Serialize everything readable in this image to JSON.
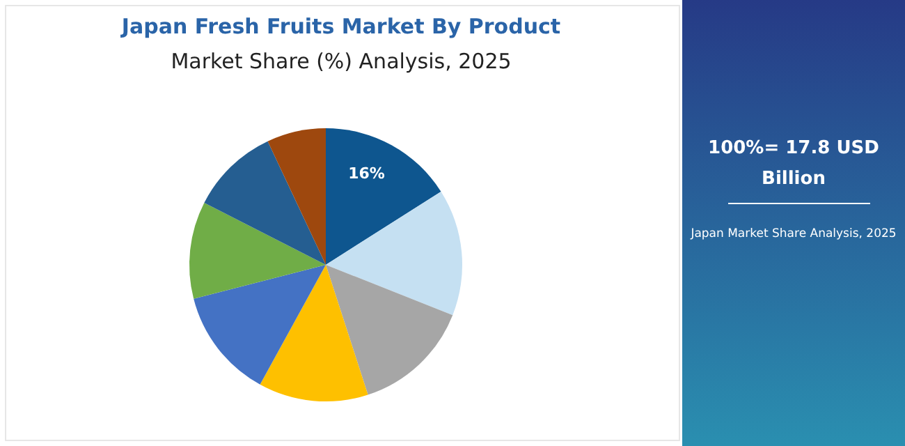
{
  "chart_data": {
    "type": "pie",
    "title": "Japan Fresh Fruits Market By Product",
    "subtitle": "Market Share (%) Analysis, 2025",
    "categories": [
      null,
      null,
      null,
      null,
      null,
      null,
      null,
      null
    ],
    "values": [
      16,
      15,
      14,
      13,
      13,
      11.5,
      10.5,
      7
    ],
    "colors": [
      "#0e568f",
      "#c5e0f2",
      "#a6a6a6",
      "#fec000",
      "#4472c4",
      "#70ad47",
      "#255e91",
      "#9e480e"
    ],
    "value_labels": [
      "16%",
      null,
      null,
      null,
      null,
      null,
      null,
      null
    ],
    "annotations": [
      "100%= 17.8 USD Billion",
      "Japan Market Share Analysis, 2025"
    ]
  }
}
